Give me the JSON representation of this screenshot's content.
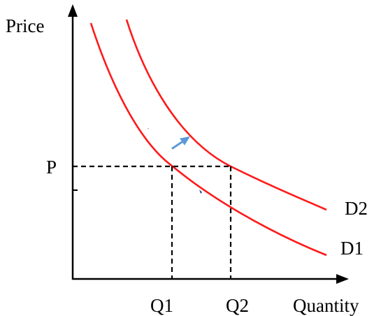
{
  "labels": {
    "y_axis": "Price",
    "x_axis": "Quantity",
    "price": "P",
    "q1": "Q1",
    "q2": "Q2",
    "curve_1": "D1",
    "curve_2": "D2"
  },
  "colors": {
    "axis": "#000000",
    "curves": "#ff1a1a",
    "guides": "#000000",
    "shift_arrow": "#5b9bd5"
  },
  "annotations": {
    "shift_arrow": "points from D1 toward D2 (demand increase)"
  }
}
